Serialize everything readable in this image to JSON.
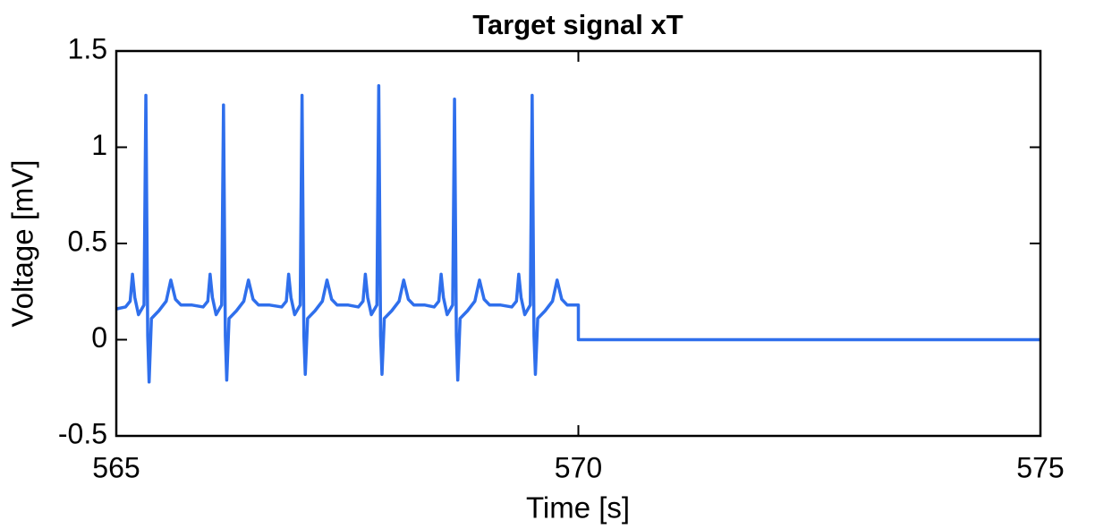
{
  "chart_data": {
    "type": "line",
    "title": "Target signal xT",
    "xlabel": "Time [s]",
    "ylabel": "Voltage [mV]",
    "color": "#2f6fec",
    "grid": false,
    "xlim": [
      565,
      575
    ],
    "xticks": [
      565,
      570,
      575
    ],
    "ylim": [
      -0.5,
      1.5
    ],
    "yticks": [
      1.5,
      1,
      0.5,
      0,
      -0.5
    ],
    "x": [
      565.0,
      565.1,
      565.15,
      565.175,
      565.2,
      565.24,
      565.3,
      565.32,
      565.34,
      565.355,
      565.38,
      565.46,
      565.54,
      565.59,
      565.64,
      565.7,
      565.82,
      565.94,
      565.99,
      566.015,
      566.04,
      566.08,
      566.14,
      566.16,
      566.18,
      566.195,
      566.22,
      566.3,
      566.38,
      566.43,
      566.48,
      566.54,
      566.66,
      566.79,
      566.84,
      566.865,
      566.89,
      566.93,
      566.99,
      567.01,
      567.03,
      567.045,
      567.07,
      567.15,
      567.23,
      567.28,
      567.33,
      567.39,
      567.51,
      567.62,
      567.67,
      567.695,
      567.72,
      567.76,
      567.82,
      567.84,
      567.86,
      567.875,
      567.9,
      567.98,
      568.06,
      568.11,
      568.16,
      568.22,
      568.34,
      568.44,
      568.49,
      568.515,
      568.54,
      568.58,
      568.64,
      568.66,
      568.68,
      568.695,
      568.72,
      568.8,
      568.88,
      568.93,
      568.98,
      569.04,
      569.16,
      569.28,
      569.33,
      569.355,
      569.38,
      569.42,
      569.48,
      569.5,
      569.52,
      569.535,
      569.56,
      569.64,
      569.72,
      569.77,
      569.82,
      569.88,
      570.0,
      570.0,
      575.0
    ],
    "values": [
      0.16,
      0.17,
      0.2,
      0.34,
      0.22,
      0.13,
      0.18,
      1.27,
      0.02,
      -0.22,
      0.11,
      0.15,
      0.2,
      0.31,
      0.21,
      0.18,
      0.18,
      0.17,
      0.2,
      0.34,
      0.22,
      0.13,
      0.18,
      1.22,
      0.02,
      -0.21,
      0.11,
      0.15,
      0.2,
      0.31,
      0.21,
      0.18,
      0.18,
      0.17,
      0.2,
      0.34,
      0.22,
      0.13,
      0.18,
      1.27,
      0.02,
      -0.18,
      0.11,
      0.15,
      0.2,
      0.31,
      0.21,
      0.18,
      0.18,
      0.17,
      0.2,
      0.34,
      0.22,
      0.13,
      0.18,
      1.32,
      0.02,
      -0.18,
      0.11,
      0.15,
      0.2,
      0.31,
      0.21,
      0.18,
      0.18,
      0.17,
      0.2,
      0.34,
      0.22,
      0.13,
      0.18,
      1.25,
      0.02,
      -0.21,
      0.11,
      0.15,
      0.2,
      0.31,
      0.21,
      0.18,
      0.18,
      0.17,
      0.2,
      0.34,
      0.22,
      0.13,
      0.18,
      1.27,
      0.02,
      -0.18,
      0.11,
      0.15,
      0.2,
      0.31,
      0.21,
      0.18,
      0.18,
      0,
      0
    ]
  }
}
